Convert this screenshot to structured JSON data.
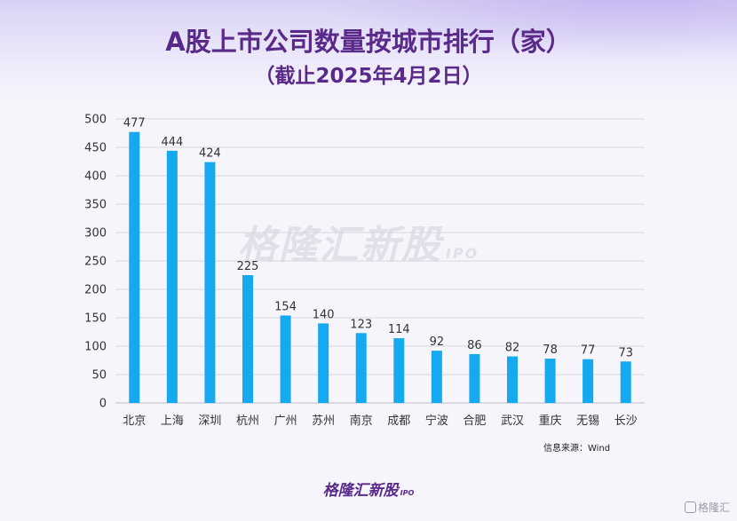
{
  "title": "A股上市公司数量按城市排行（家）",
  "subtitle": "（截止2025年4月2日）",
  "source": "信息来源：Wind",
  "brand": {
    "name": "格隆汇新股",
    "sub": "IPO"
  },
  "corner_logo": "格隆汇",
  "colors": {
    "bar": "#15aaf0",
    "title": "#5a2a8a",
    "axis_text": "#333333",
    "grid": "#d9d8de"
  },
  "chart_data": {
    "type": "bar",
    "title": "A股上市公司数量按城市排行（家）",
    "subtitle": "（截止2025年4月2日）",
    "categories": [
      "北京",
      "上海",
      "深圳",
      "杭州",
      "广州",
      "苏州",
      "南京",
      "成都",
      "宁波",
      "合肥",
      "武汉",
      "重庆",
      "无锡",
      "长沙"
    ],
    "values": [
      477,
      444,
      424,
      225,
      154,
      140,
      123,
      114,
      92,
      86,
      82,
      78,
      77,
      73
    ],
    "ylim": [
      0,
      500
    ],
    "yticks": [
      0,
      50,
      100,
      150,
      200,
      250,
      300,
      350,
      400,
      450,
      500
    ],
    "xlabel": "",
    "ylabel": "",
    "grid": true,
    "legend": "none",
    "data_labels": true
  }
}
